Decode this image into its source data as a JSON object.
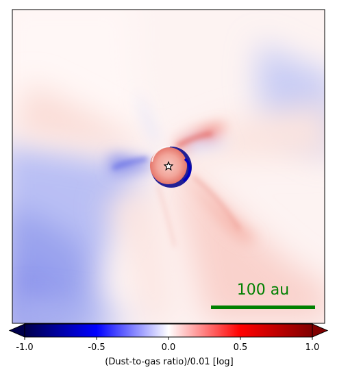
{
  "colorbar": {
    "label": "(Dust-to-gas ratio)/0.01 [log]",
    "ticks": [
      {
        "value": -1.0,
        "label": "-1.0"
      },
      {
        "value": -0.5,
        "label": "-0.5"
      },
      {
        "value": 0.0,
        "label": "0.0"
      },
      {
        "value": 0.5,
        "label": "0.5"
      },
      {
        "value": 1.0,
        "label": "1.0"
      }
    ],
    "range": [
      -1.0,
      1.0
    ],
    "colormap": "seismic",
    "extend": "both"
  },
  "scale_bar": {
    "label": "100 au",
    "color": "#008000"
  },
  "star_marker": {
    "symbol": "star",
    "edge_color": "#000000",
    "face_color": "#ffffff"
  },
  "colors": {
    "negative_extreme": "#00004c",
    "negative": "#0000ff",
    "neutral": "#ffffff",
    "positive": "#ff0000",
    "positive_extreme": "#800000"
  }
}
